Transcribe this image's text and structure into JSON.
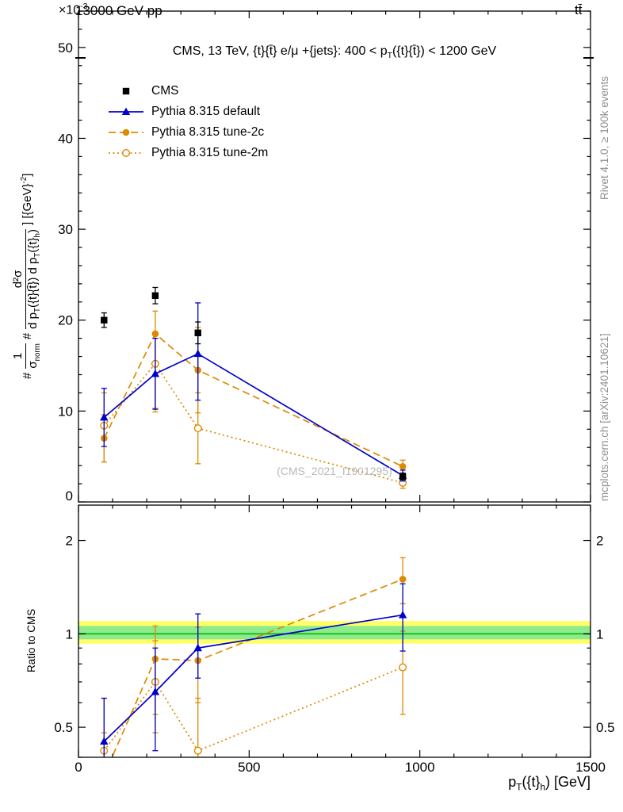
{
  "page": {
    "bg": "#ffffff"
  },
  "titles": {
    "multiplier_base": "×10",
    "multiplier_exp": "-3",
    "energy": "13000 GeV pp",
    "process": "tt̄",
    "cut_prefix": "CMS, 13 TeV, {t}{t̄} e/μ +{jets}: 400 < p",
    "cut_sub1": "T",
    "cut_mid": "({t}{t̄}) < 1200 GeV"
  },
  "watermark": "(CMS_2021_I1901295)",
  "side_notes": {
    "rivet": "Rivet 4.1.0, ≥ 100k events",
    "mcplots": "mcplots.cern.ch [arXiv:2401.10621]"
  },
  "axes": {
    "ratio_y_title": "Ratio to CMS",
    "x_title": {
      "p": "p",
      "sub_T": "T",
      "mid": "({t}",
      "sub_h": "h",
      "end": ") [GeV]"
    },
    "ylabel_main": {
      "hash1": "#",
      "frac1_num": "1",
      "frac1_den_base": "σ",
      "frac1_den_sub": "norm",
      "hash2": "#",
      "frac2_num": "d²σ",
      "den_a": "d p",
      "den_sub1": "T",
      "den_b": "({t}{t̄}) d p",
      "den_sub2": "T",
      "den_c": "({t}",
      "den_sub3": "h",
      "den_d": ")",
      "suffix_a": "] [{GeV}",
      "suffix_exp": "-2",
      "suffix_b": "]"
    }
  },
  "chart_data": {
    "type": "scatter",
    "x": {
      "lim": [
        0,
        1500
      ],
      "ticks": [
        0,
        500,
        1000,
        1500
      ],
      "minor_step": 100,
      "title": "p_T({t}_h) [GeV]"
    },
    "main_panel": {
      "y_title": "1/σ_norm d²σ/(d p_T({t}{t̄}) d p_T({t}_h)) [{GeV}^-2]",
      "y_multiplier": "×10^-3",
      "y_lim": [
        0,
        54
      ],
      "y_ticks": [
        0,
        10,
        20,
        30,
        40,
        50
      ],
      "y_minor_step": 2,
      "series": [
        {
          "name": "CMS",
          "color": "#000000",
          "marker": "square-filled",
          "line": "none",
          "x": [
            75,
            225,
            350,
            950
          ],
          "y": [
            20.0,
            22.7,
            18.6,
            2.8
          ],
          "yerr": [
            [
              19.2,
              20.8
            ],
            [
              21.8,
              23.6
            ],
            [
              17.4,
              19.8
            ],
            [
              2.45,
              3.15
            ]
          ]
        },
        {
          "name": "Pythia 8.315 default",
          "color": "#0000cc",
          "marker": "triangle-filled",
          "line": "solid",
          "x": [
            75,
            225,
            350,
            950
          ],
          "y": [
            9.3,
            14.1,
            16.3,
            2.9
          ],
          "yerr": [
            [
              6.1,
              12.5
            ],
            [
              10.2,
              18.0
            ],
            [
              11.2,
              21.9
            ],
            [
              2.3,
              3.5
            ]
          ]
        },
        {
          "name": "Pythia 8.315 tune-2c",
          "color": "#dd8a00",
          "marker": "circle-filled",
          "line": "dashed",
          "x": [
            75,
            225,
            350,
            950
          ],
          "y": [
            7.0,
            18.5,
            14.5,
            3.9
          ],
          "yerr": [
            [
              4.4,
              9.6
            ],
            [
              10.3,
              21.0
            ],
            [
              9.8,
              19.2
            ],
            [
              3.2,
              4.6
            ]
          ]
        },
        {
          "name": "Pythia 8.315 tune-2m",
          "color": "#dd8a00",
          "marker": "circle-open",
          "line": "dotted",
          "x": [
            75,
            225,
            350,
            950
          ],
          "y": [
            8.4,
            15.2,
            8.1,
            2.1
          ],
          "yerr": [
            [
              4.4,
              12.0
            ],
            [
              9.9,
              18.6
            ],
            [
              4.2,
              12.0
            ],
            [
              1.5,
              2.7
            ]
          ]
        }
      ]
    },
    "ratio_panel": {
      "y_title": "Ratio to CMS",
      "y_scale": "log",
      "y_lim": [
        0.4,
        2.6
      ],
      "y_ticks": [
        0.5,
        1,
        2
      ],
      "y_minors": [
        0.4,
        0.6,
        0.7,
        0.8,
        0.9
      ],
      "bands": {
        "yellow": [
          0.93,
          1.1
        ],
        "yellow_color": "#ffff66",
        "green": [
          0.96,
          1.06
        ],
        "green_color": "#8dea8d",
        "center_line": 1,
        "center_color": "#00bb00"
      },
      "series": [
        {
          "name": "Pythia 8.315 default",
          "color": "#0000cc",
          "marker": "triangle-filled",
          "line": "solid",
          "x": [
            75,
            225,
            350,
            950
          ],
          "y": [
            0.45,
            0.65,
            0.9,
            1.15
          ],
          "yerr": [
            [
              0.3,
              0.62
            ],
            [
              0.42,
              0.9
            ],
            [
              0.72,
              1.16
            ],
            [
              0.88,
              1.45
            ]
          ]
        },
        {
          "name": "Pythia 8.315 tune-2c",
          "color": "#dd8a00",
          "marker": "circle-filled",
          "line": "dashed",
          "x": [
            75,
            225,
            350,
            950
          ],
          "y": [
            0.35,
            0.83,
            0.82,
            1.5
          ],
          "yerr": [
            [
              0.22,
              0.48
            ],
            [
              0.55,
              1.06
            ],
            [
              0.6,
              1.05
            ],
            [
              1.25,
              1.76
            ]
          ]
        },
        {
          "name": "Pythia 8.315 tune-2m",
          "color": "#dd8a00",
          "marker": "circle-open",
          "line": "dotted",
          "x": [
            75,
            225,
            350,
            950
          ],
          "y": [
            0.42,
            0.7,
            0.42,
            0.78
          ],
          "yerr": [
            [
              0.23,
              0.62
            ],
            [
              0.48,
              0.95
            ],
            [
              0.28,
              0.62
            ],
            [
              0.55,
              1.02
            ]
          ]
        }
      ]
    }
  }
}
